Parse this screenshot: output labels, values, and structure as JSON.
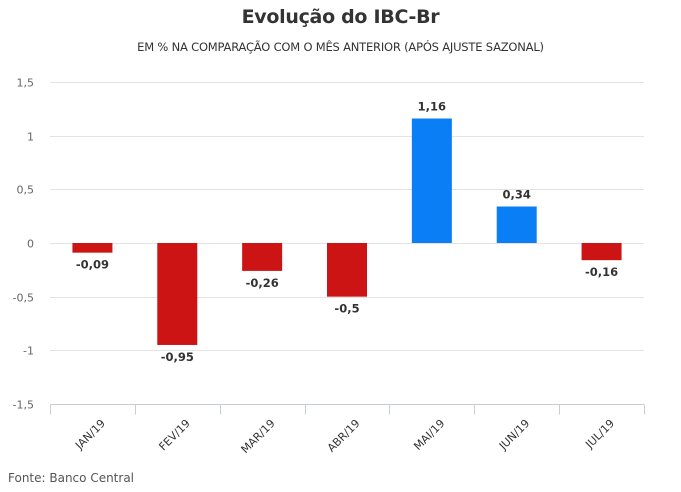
{
  "chart_data": {
    "type": "bar",
    "title": "Evolução do IBC-Br",
    "subtitle": "EM % NA COMPARAÇÃO COM O MÊS ANTERIOR (APÓS AJUSTE SAZONAL)",
    "xlabel": "",
    "ylabel": "",
    "categories": [
      "JAN/19",
      "FEV/19",
      "MAR/19",
      "ABR/19",
      "MAI/19",
      "JUN/19",
      "JUL/19"
    ],
    "values": [
      -0.09,
      -0.95,
      -0.26,
      -0.5,
      1.16,
      0.34,
      -0.16
    ],
    "data_labels": [
      "-0,09",
      "-0,95",
      "-0,26",
      "-0,5",
      "1,16",
      "0,34",
      "-0,16"
    ],
    "ylim": [
      -1.5,
      1.5
    ],
    "yticks": [
      1.5,
      1,
      0.5,
      0,
      -0.5,
      -1,
      -1.5
    ],
    "ytick_labels": [
      "1,5",
      "1",
      "0,5",
      "0",
      "-0,5",
      "-1",
      "-1,5"
    ],
    "grid": true,
    "legend": "none",
    "colors": {
      "positive": "#0a7ff5",
      "negative": "#cc1414",
      "grid": "#e3e3e3",
      "axis": "#c8ccd4"
    },
    "source": "Fonte: Banco Central"
  }
}
